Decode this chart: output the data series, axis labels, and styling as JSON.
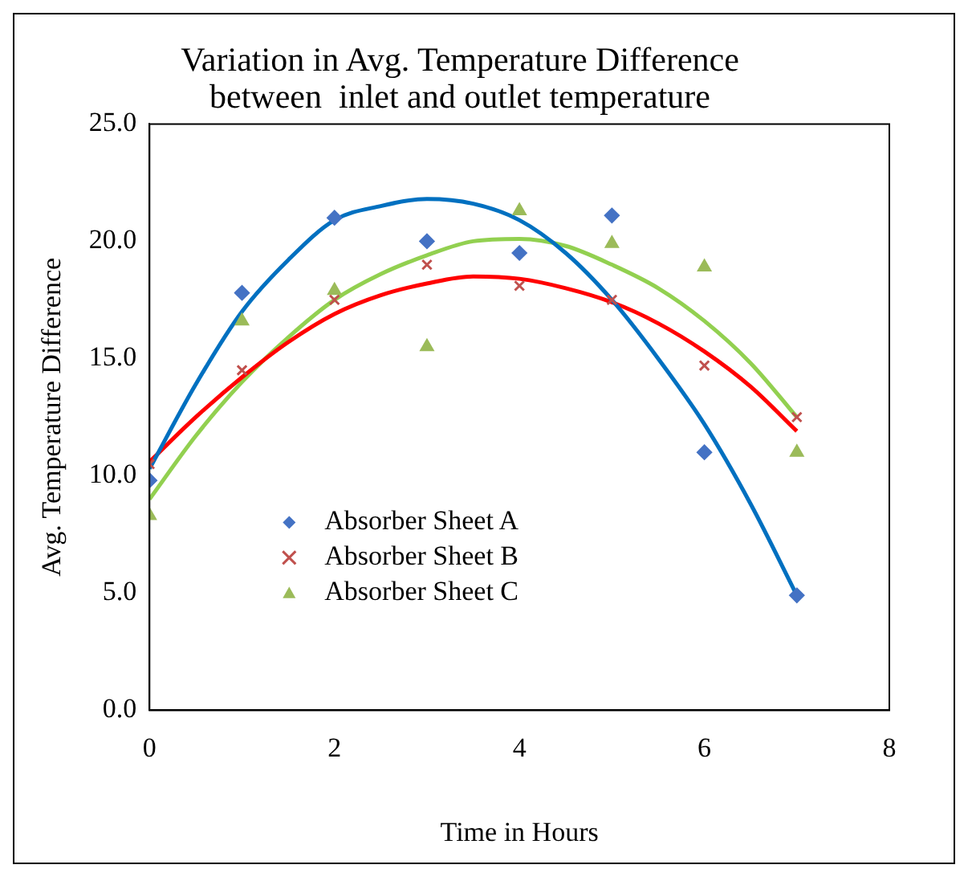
{
  "chart_data": {
    "type": "scatter",
    "title": "Variation in Avg. Temperature Difference\nbetween  inlet and outlet temperature",
    "xlabel": "Time in Hours",
    "ylabel": "Avg. Temperature Difference",
    "x": [
      0,
      1,
      2,
      3,
      4,
      5,
      6,
      7
    ],
    "series": [
      {
        "name": "Absorber Sheet A",
        "color": "#4472c4",
        "marker": "diamond",
        "values": [
          9.8,
          17.8,
          21.0,
          20.0,
          19.5,
          21.1,
          11.0,
          4.9
        ]
      },
      {
        "name": "Absorber Sheet B",
        "color": "#c0504d",
        "marker": "cross",
        "values": [
          10.5,
          14.5,
          17.5,
          19.0,
          18.1,
          17.5,
          14.7,
          12.5
        ]
      },
      {
        "name": "Absorber Sheet C",
        "color": "#9bbb59",
        "marker": "triangle",
        "values": [
          8.3,
          16.6,
          17.9,
          15.5,
          21.3,
          19.9,
          18.9,
          11.0
        ]
      },
      {
        "type": "line",
        "color": "#0070c0",
        "marker": "none",
        "x": [
          0,
          0.5,
          1,
          1.5,
          2,
          2.5,
          3,
          3.5,
          4,
          4.5,
          5,
          5.5,
          6,
          6.5,
          7
        ],
        "values": [
          10.3,
          13.9,
          17.0,
          19.2,
          20.9,
          21.5,
          21.8,
          21.6,
          20.9,
          19.5,
          17.5,
          15.0,
          12.2,
          8.8,
          4.9
        ]
      },
      {
        "type": "line",
        "color": "#ff0000",
        "marker": "none",
        "x": [
          0,
          0.5,
          1,
          1.5,
          2,
          2.5,
          3,
          3.5,
          4,
          4.5,
          5,
          5.5,
          6,
          6.5,
          7
        ],
        "values": [
          10.6,
          12.5,
          14.2,
          15.7,
          16.9,
          17.7,
          18.2,
          18.5,
          18.4,
          18.0,
          17.4,
          16.5,
          15.3,
          13.8,
          11.9
        ]
      },
      {
        "type": "line",
        "color": "#92d050",
        "marker": "none",
        "x": [
          0,
          0.5,
          1,
          1.5,
          2,
          2.5,
          3,
          3.5,
          4,
          4.5,
          5,
          5.5,
          6,
          6.5,
          7
        ],
        "values": [
          9.0,
          11.7,
          14.0,
          15.9,
          17.5,
          18.6,
          19.4,
          20.0,
          20.1,
          19.8,
          19.0,
          18.0,
          16.6,
          14.8,
          12.5
        ]
      }
    ],
    "xlim": [
      0,
      8
    ],
    "xticks": [
      0,
      2,
      4,
      6,
      8
    ],
    "ylim": [
      0,
      25
    ],
    "yticks": [
      {
        "value": 0,
        "label": "0.0"
      },
      {
        "value": 5,
        "label": "5.0"
      },
      {
        "value": 10,
        "label": "10.0"
      },
      {
        "value": 15,
        "label": "15.0"
      },
      {
        "value": 20,
        "label": "20.0"
      },
      {
        "value": 25,
        "label": "25.0"
      }
    ],
    "grid": false,
    "legend": "bottom left"
  }
}
